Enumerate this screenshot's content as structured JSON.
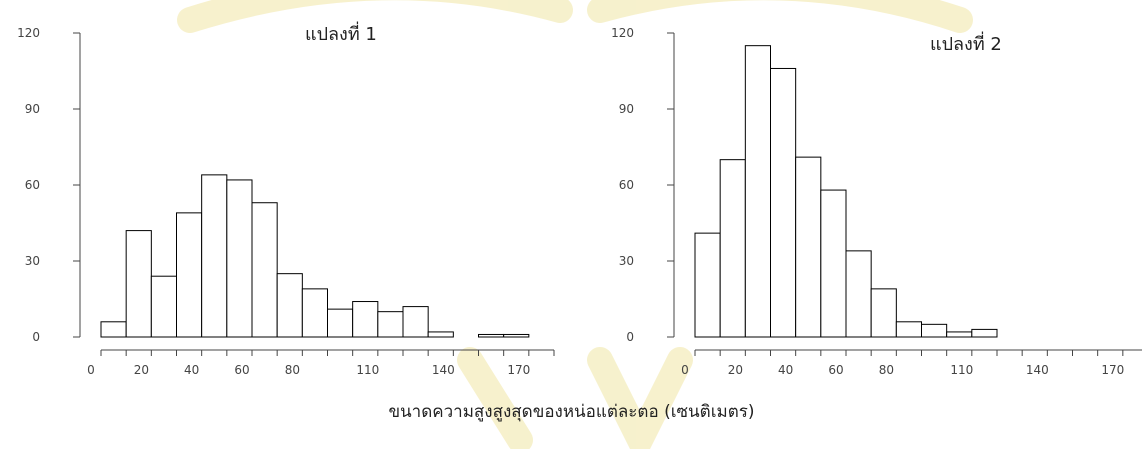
{
  "caption": "ขนาดความสูงสูงสุดของหน่อแต่ละตอ (เซนติเมตร)",
  "watermark_color": "#f6f0c8",
  "chart_data": [
    {
      "type": "bar",
      "title": "แปลงที่ 1",
      "xlabel": "",
      "ylabel": "",
      "bin_width": 10,
      "x_start": 0,
      "xlim": [
        0,
        180
      ],
      "ylim": [
        0,
        120
      ],
      "xticks": [
        0,
        20,
        40,
        60,
        80,
        110,
        140,
        170
      ],
      "xtick_positions": [
        0,
        10,
        20,
        30,
        40,
        50,
        60,
        70,
        80,
        90,
        100,
        110,
        120,
        130,
        140,
        150,
        160,
        170,
        180
      ],
      "yticks": [
        0,
        30,
        60,
        90,
        120
      ],
      "values": [
        6,
        42,
        24,
        49,
        64,
        62,
        53,
        25,
        19,
        11,
        14,
        10,
        12,
        2,
        0,
        1,
        1,
        0
      ],
      "bar_color": "#ffffff",
      "edge_color": "#000000"
    },
    {
      "type": "bar",
      "title": "แปลงที่ 2",
      "xlabel": "",
      "ylabel": "",
      "bin_width": 10,
      "x_start": 0,
      "xlim": [
        0,
        180
      ],
      "ylim": [
        0,
        120
      ],
      "xticks": [
        0,
        20,
        40,
        60,
        80,
        110,
        140,
        170
      ],
      "xtick_positions": [
        0,
        10,
        20,
        30,
        40,
        50,
        60,
        70,
        80,
        90,
        100,
        110,
        120,
        130,
        140,
        150,
        160,
        170,
        180
      ],
      "yticks": [
        0,
        30,
        60,
        90,
        120
      ],
      "values": [
        41,
        70,
        115,
        106,
        71,
        58,
        34,
        19,
        6,
        5,
        2,
        3,
        0,
        0,
        0,
        0,
        0,
        0
      ],
      "bar_color": "#ffffff",
      "edge_color": "#000000"
    }
  ]
}
